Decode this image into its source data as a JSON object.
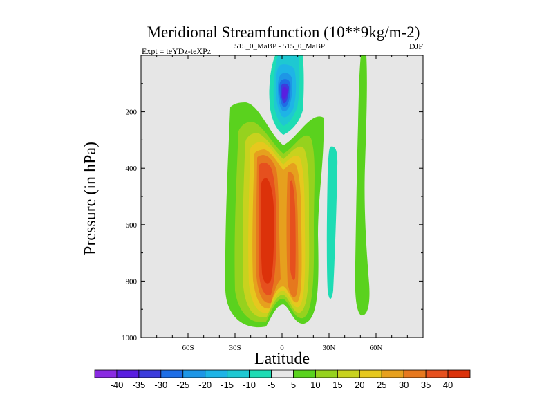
{
  "chart_data": {
    "type": "contour",
    "title": "Meridional Streamfunction (10**9kg/m-2)",
    "subtitle_left_prefix": "Expt = teYDz-teXPz",
    "subtitle_left_super": "515_0_MaBP - 515_0_MaBP",
    "subtitle_right": "DJF",
    "xlabel": "Latitude",
    "ylabel": "Pressure (in hPa)",
    "xlim": [
      -90,
      90
    ],
    "ylim": [
      1000,
      0
    ],
    "x_ticks": [
      {
        "value": -60,
        "label": "60S"
      },
      {
        "value": -30,
        "label": "30S"
      },
      {
        "value": 0,
        "label": "0"
      },
      {
        "value": 30,
        "label": "30N"
      },
      {
        "value": 60,
        "label": "60N"
      }
    ],
    "y_ticks": [
      {
        "value": 200,
        "label": "200"
      },
      {
        "value": 400,
        "label": "400"
      },
      {
        "value": 600,
        "label": "600"
      },
      {
        "value": 800,
        "label": "800"
      },
      {
        "value": 1000,
        "label": "1000"
      }
    ],
    "missing_color": "#e6e6e6",
    "contour_levels": [
      -40,
      -35,
      -30,
      -25,
      -20,
      -15,
      -10,
      -5,
      5,
      10,
      15,
      20,
      25,
      30,
      35,
      40
    ],
    "colorbar_colors": [
      "#8a2be2",
      "#5a1ee0",
      "#3c3cdc",
      "#1e6ee6",
      "#1e96e6",
      "#1eb4e6",
      "#1ec8d2",
      "#1edcb4",
      "#e6e6e6",
      "#5ad21e",
      "#96d21e",
      "#c8d21e",
      "#e6c81e",
      "#e6a01e",
      "#e6781e",
      "#e6501e",
      "#dc320a"
    ],
    "features": [
      {
        "name": "tropical-hadley-cell",
        "sign": "positive",
        "lat_center": -8,
        "pressure_range": [
          230,
          960
        ],
        "peak_value": 40
      },
      {
        "name": "equatorial-secondary-positive",
        "sign": "positive",
        "lat_center": 8,
        "pressure_range": [
          200,
          940
        ],
        "peak_value": 35
      },
      {
        "name": "upper-tropical-negative-cell",
        "sign": "negative",
        "lat_center": 0,
        "pressure_range": [
          0,
          230
        ],
        "peak_value": -35
      },
      {
        "name": "nh-midlatitude-negative-band",
        "sign": "negative",
        "lat_center": 33,
        "pressure_range": [
          320,
          850
        ],
        "peak_value": -10
      },
      {
        "name": "nh-subpolar-positive-band",
        "sign": "positive",
        "lat_center": 51,
        "pressure_range": [
          0,
          920
        ],
        "peak_value": 5
      }
    ]
  }
}
